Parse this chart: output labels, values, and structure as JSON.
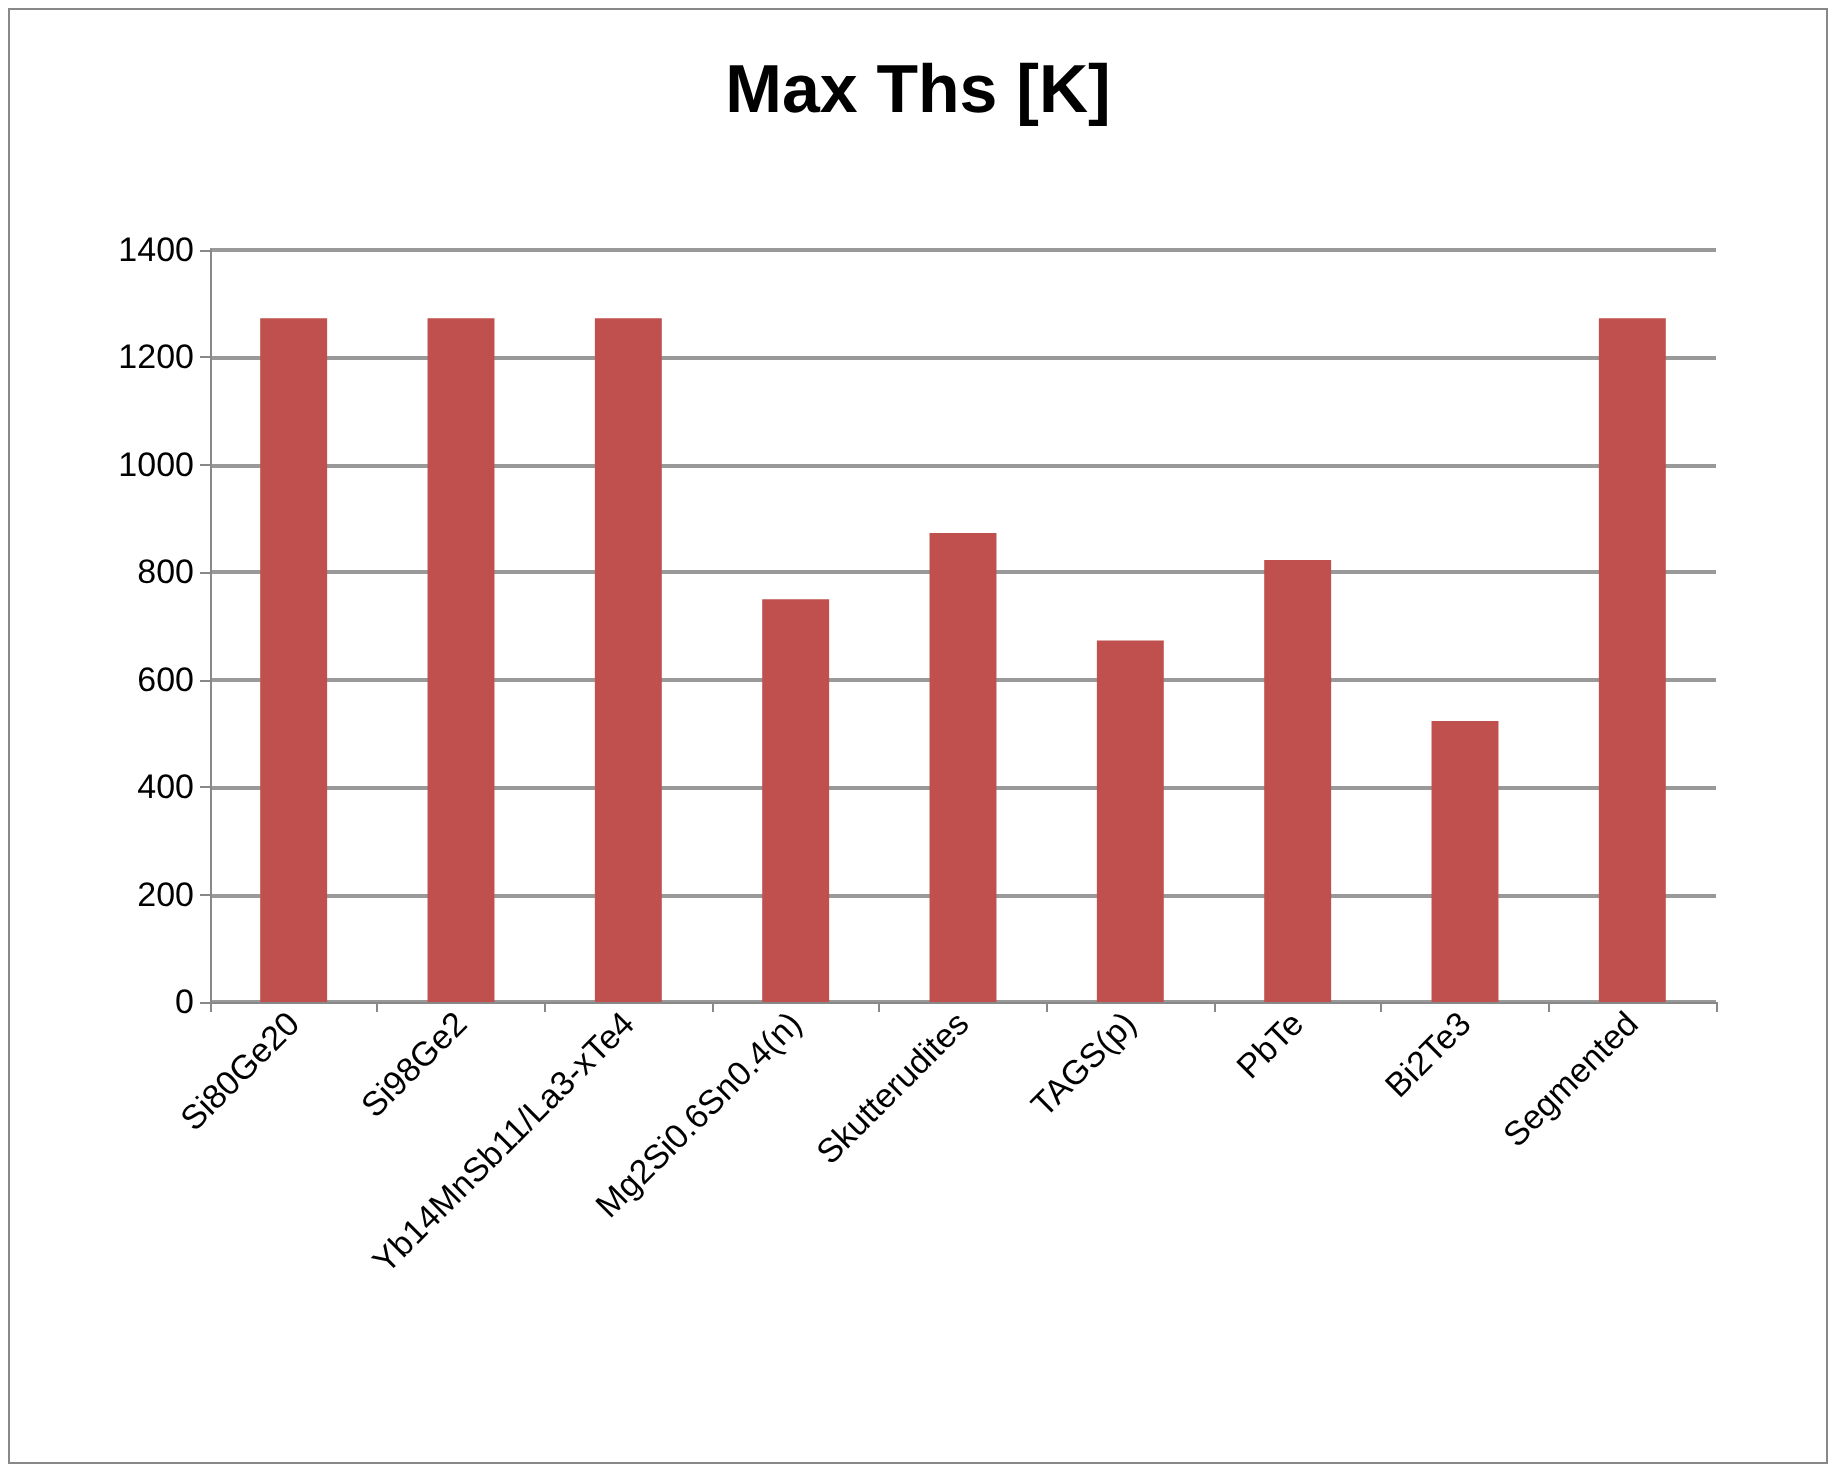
{
  "chart_data": {
    "type": "bar",
    "title": "Max Ths [K]",
    "categories": [
      "Si80Ge20",
      "Si98Ge2",
      "Yb14MnSb11/La3-xTe4",
      "Mg2Si0.6Sn0.4(n)",
      "Skutterudites",
      "TAGS(p)",
      "PbTe",
      "Bi2Te3",
      "Segmented"
    ],
    "values": [
      1273,
      1273,
      1273,
      750,
      873,
      673,
      823,
      523,
      1273
    ],
    "color": "#c0504d",
    "ylim": [
      0,
      1400
    ],
    "yticks": [
      0,
      200,
      400,
      600,
      800,
      1000,
      1200,
      1400
    ],
    "grid": "y"
  }
}
